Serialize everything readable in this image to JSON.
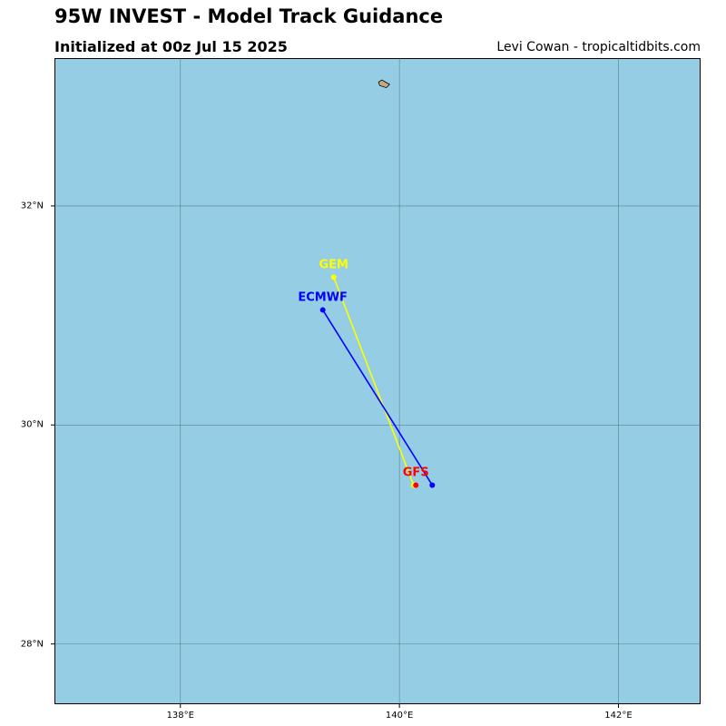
{
  "header": {
    "title": "95W INVEST - Model Track Guidance",
    "subtitle": "Initialized at 00z Jul 15 2025",
    "credit": "Levi Cowan - tropicaltidbits.com"
  },
  "map": {
    "ocean_color": "#94cde4",
    "land_color": "#c8a882",
    "grid": true,
    "lon_range": [
      136.85,
      142.75
    ],
    "lat_range": [
      27.45,
      33.35
    ],
    "lat_ticks": [
      {
        "value": 28,
        "label": "28°N"
      },
      {
        "value": 30,
        "label": "30°N"
      },
      {
        "value": 32,
        "label": "32°N"
      }
    ],
    "lon_ticks": [
      {
        "value": 138,
        "label": "138°E"
      },
      {
        "value": 140,
        "label": "140°E"
      },
      {
        "value": 142,
        "label": "142°E"
      }
    ],
    "island": [
      [
        139.81,
        33.13
      ],
      [
        139.84,
        33.15
      ],
      [
        139.91,
        33.11
      ],
      [
        139.88,
        33.08
      ],
      [
        139.82,
        33.1
      ]
    ],
    "tracks": [
      {
        "name": "GEM",
        "color": "#ffff00",
        "points": [
          [
            140.13,
            29.45
          ],
          [
            139.4,
            31.35
          ]
        ]
      },
      {
        "name": "ECMWF",
        "color": "#0000ff",
        "points": [
          [
            140.3,
            29.45
          ],
          [
            139.3,
            31.05
          ]
        ]
      },
      {
        "name": "GFS",
        "color": "#ff0000",
        "points": [
          [
            140.15,
            29.45
          ]
        ]
      }
    ]
  }
}
